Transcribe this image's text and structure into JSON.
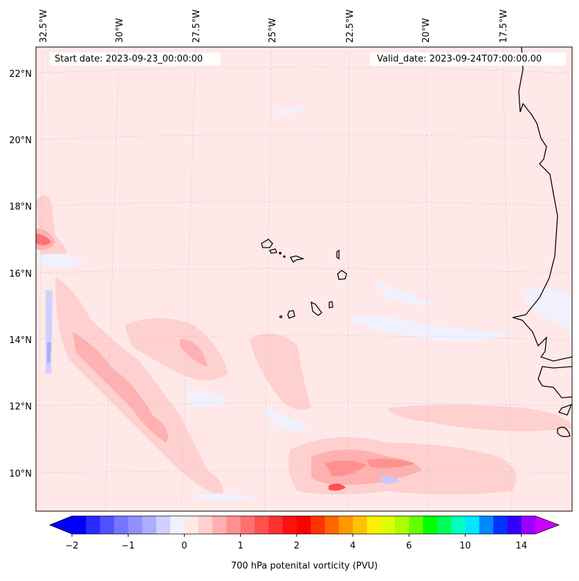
{
  "header": {
    "start_date": "Start date: 2023-09-23_00:00:00",
    "valid_date": "Valid_date: 2023-09-24T07:00:00.00"
  },
  "map": {
    "lon_labels": [
      "32.5°W",
      "30°W",
      "27.5°W",
      "25°W",
      "22.5°W",
      "20°W",
      "17.5°W"
    ],
    "lat_labels": [
      "22°N",
      "20°N",
      "18°N",
      "16°N",
      "14°N",
      "12°N",
      "10°N"
    ],
    "background_color": "#ffe8e8"
  },
  "colorbar": {
    "label": "700 hPa potenital vorticity (PVU)",
    "tick_labels": [
      "−2",
      "−1",
      "0",
      "1",
      "2",
      "4",
      "6",
      "10",
      "14"
    ],
    "under_color": "#0000ff",
    "over_color": "#cc00ff",
    "colors": [
      "#0000ff",
      "#2a2aff",
      "#5050ff",
      "#7575ff",
      "#9090ff",
      "#adadff",
      "#d0d0ff",
      "#f0f0ff",
      "#ffe8e8",
      "#ffd0d0",
      "#ffb0b0",
      "#ff9090",
      "#ff7070",
      "#ff5050",
      "#ff3030",
      "#ff1010",
      "#ff0000",
      "#ff3300",
      "#ff6600",
      "#ff9900",
      "#ffc200",
      "#fff000",
      "#ddff00",
      "#aaff00",
      "#66ff00",
      "#00ff00",
      "#00ff55",
      "#00ffc0",
      "#00e8ff",
      "#0088ff",
      "#0033ff",
      "#3300ff",
      "#9900ff"
    ]
  }
}
